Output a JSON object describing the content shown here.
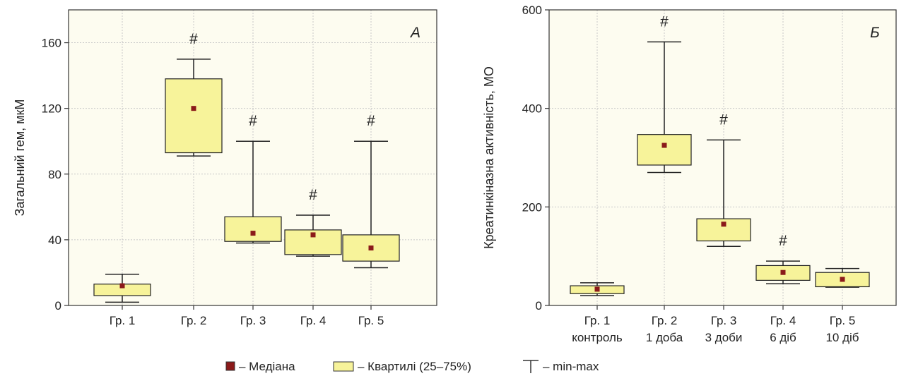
{
  "chart_data": [
    {
      "type": "box",
      "panel_label": "А",
      "ylabel": "Загальний гем, мкМ",
      "ylim": [
        0,
        180
      ],
      "yticks": [
        0,
        40,
        80,
        120,
        160
      ],
      "grid": true,
      "categories": [
        {
          "lines": [
            "Гр. 1"
          ]
        },
        {
          "lines": [
            "Гр. 2"
          ]
        },
        {
          "lines": [
            "Гр. 3"
          ]
        },
        {
          "lines": [
            "Гр. 4"
          ]
        },
        {
          "lines": [
            "Гр. 5"
          ]
        }
      ],
      "boxes": [
        {
          "min": 2,
          "q1": 6,
          "median": 12,
          "q3": 13,
          "max": 19,
          "mark": ""
        },
        {
          "min": 91,
          "q1": 93,
          "median": 120,
          "q3": 138,
          "max": 150,
          "mark": "#"
        },
        {
          "min": 38,
          "q1": 39,
          "median": 44,
          "q3": 54,
          "max": 100,
          "mark": "#"
        },
        {
          "min": 30,
          "q1": 31,
          "median": 43,
          "q3": 46,
          "max": 55,
          "mark": "#"
        },
        {
          "min": 23,
          "q1": 27,
          "median": 35,
          "q3": 43,
          "max": 100,
          "mark": "#"
        }
      ]
    },
    {
      "type": "box",
      "panel_label": "Б",
      "ylabel": "Креатинкіназна активність, МО",
      "ylim": [
        0,
        600
      ],
      "yticks": [
        0,
        200,
        400,
        600
      ],
      "grid": true,
      "categories": [
        {
          "lines": [
            "Гр. 1",
            "контроль"
          ]
        },
        {
          "lines": [
            "Гр. 2",
            "1 доба"
          ]
        },
        {
          "lines": [
            "Гр. 3",
            "3 доби"
          ]
        },
        {
          "lines": [
            "Гр. 4",
            "6 діб"
          ]
        },
        {
          "lines": [
            "Гр. 5",
            "10 діб"
          ]
        }
      ],
      "boxes": [
        {
          "min": 20,
          "q1": 24,
          "median": 33,
          "q3": 40,
          "max": 46,
          "mark": ""
        },
        {
          "min": 270,
          "q1": 285,
          "median": 325,
          "q3": 347,
          "max": 535,
          "mark": "#"
        },
        {
          "min": 120,
          "q1": 131,
          "median": 165,
          "q3": 176,
          "max": 336,
          "mark": "#"
        },
        {
          "min": 44,
          "q1": 51,
          "median": 67,
          "q3": 81,
          "max": 90,
          "mark": "#"
        },
        {
          "min": 37,
          "q1": 38,
          "median": 53,
          "q3": 67,
          "max": 75,
          "mark": ""
        }
      ]
    }
  ],
  "legend": {
    "median": "– Медіана",
    "quartiles": "– Квартилі (25–75%)",
    "minmax": "– min-max"
  },
  "colors": {
    "box_fill": "#f7f39a",
    "median": "#8b1a1a",
    "panel_bg": "#fdfcf0",
    "grid": "#c9c9c9",
    "axis": "#333333"
  }
}
